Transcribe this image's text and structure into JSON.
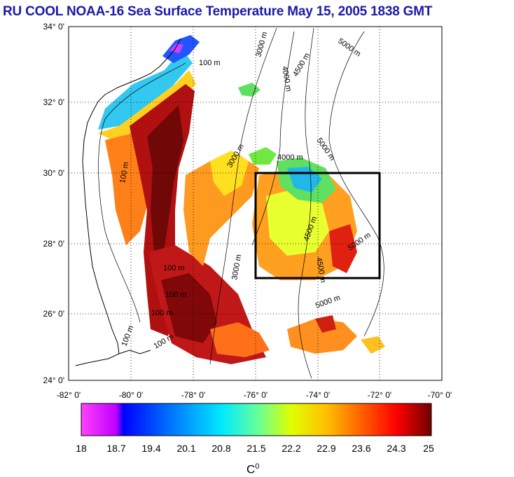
{
  "title": "RU COOL  NOAA-16 Sea Surface Temperature May 15, 2005 1838 GMT",
  "axes": {
    "lat_labels": [
      "34° 0'",
      "32° 0'",
      "30° 0'",
      "28° 0'",
      "26° 0'",
      "24° 0'"
    ],
    "lon_labels": [
      "-82° 0'",
      "-80° 0'",
      "-78° 0'",
      "-76° 0'",
      "-74° 0'",
      "-72° 0'",
      "-70° 0'"
    ]
  },
  "contour_labels": [
    "100 m",
    "100 m",
    "100 m",
    "100 m",
    "100 m",
    "100 m",
    "100 m",
    "3000 m",
    "3000 m",
    "3000 m",
    "4000 m",
    "4000 m",
    "4500 m",
    "4500 m",
    "4500 m",
    "5000 m",
    "5000 m",
    "5000 m",
    "5000 m"
  ],
  "colorbar": {
    "ticks": [
      "18",
      "18.7",
      "19.4",
      "20.1",
      "20.8",
      "21.5",
      "22.2",
      "22.9",
      "23.6",
      "24.3",
      "25"
    ],
    "unit": "C",
    "unit_sup": "0",
    "colors": [
      "#ff40ff",
      "#c000ff",
      "#0000ff",
      "#0070ff",
      "#00c8ff",
      "#40ffd0",
      "#b0ff40",
      "#ffff00",
      "#ffb000",
      "#ff6000",
      "#ff0000",
      "#a00000",
      "#700000"
    ]
  },
  "region_box": {
    "lat": [
      27,
      30
    ],
    "lon": [
      -76,
      -72
    ]
  }
}
